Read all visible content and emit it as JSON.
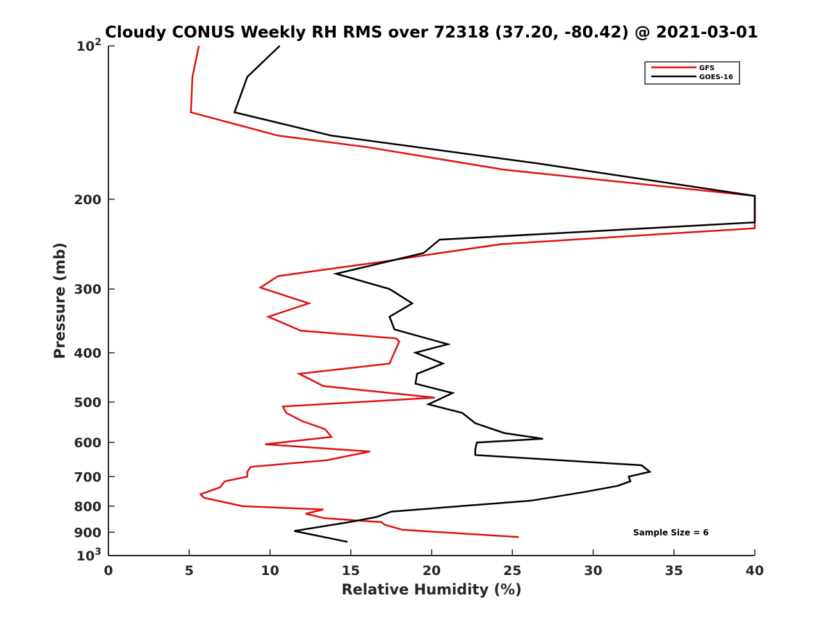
{
  "chart_data": {
    "type": "line",
    "title": "Cloudy CONUS Weekly RH RMS over 72318 (37.20, -80.42) @ 2021-03-01",
    "xlabel": "Relative Humidity (%)",
    "ylabel": "Pressure (mb)",
    "xlim": [
      0,
      40
    ],
    "ylim": [
      100,
      1000
    ],
    "yscale": "log",
    "y_reversed": true,
    "grid": false,
    "legend_position": "top-right",
    "x_ticks": [
      "0",
      "5",
      "10",
      "15",
      "20",
      "25",
      "30",
      "35",
      "40"
    ],
    "y_ticks": [
      {
        "value": 100,
        "base": "10",
        "exp": "2"
      },
      {
        "value": 200,
        "label": "200"
      },
      {
        "value": 300,
        "label": "300"
      },
      {
        "value": 400,
        "label": "400"
      },
      {
        "value": 500,
        "label": "500"
      },
      {
        "value": 600,
        "label": "600"
      },
      {
        "value": 700,
        "label": "700"
      },
      {
        "value": 800,
        "label": "800"
      },
      {
        "value": 900,
        "label": "900"
      },
      {
        "value": 1000,
        "base": "10",
        "exp": "3"
      }
    ],
    "annotation": "Sample Size = 6",
    "series": [
      {
        "name": "GFS",
        "color": "#e01010",
        "points": [
          {
            "rh": 5.6,
            "p": 100
          },
          {
            "rh": 5.2,
            "p": 115
          },
          {
            "rh": 5.1,
            "p": 135
          },
          {
            "rh": 10.5,
            "p": 150
          },
          {
            "rh": 16.0,
            "p": 158
          },
          {
            "rh": 24.5,
            "p": 175
          },
          {
            "rh": 40.0,
            "p": 197
          },
          {
            "rh": 40.0,
            "p": 228
          },
          {
            "rh": 24.3,
            "p": 245
          },
          {
            "rh": 20.5,
            "p": 255
          },
          {
            "rh": 17.0,
            "p": 265
          },
          {
            "rh": 10.5,
            "p": 283
          },
          {
            "rh": 9.4,
            "p": 298
          },
          {
            "rh": 12.4,
            "p": 320
          },
          {
            "rh": 9.9,
            "p": 340
          },
          {
            "rh": 11.9,
            "p": 362
          },
          {
            "rh": 17.8,
            "p": 375
          },
          {
            "rh": 18.0,
            "p": 380
          },
          {
            "rh": 17.4,
            "p": 420
          },
          {
            "rh": 11.8,
            "p": 440
          },
          {
            "rh": 13.3,
            "p": 465
          },
          {
            "rh": 20.2,
            "p": 490
          },
          {
            "rh": 10.8,
            "p": 510
          },
          {
            "rh": 11.0,
            "p": 525
          },
          {
            "rh": 12.0,
            "p": 545
          },
          {
            "rh": 13.4,
            "p": 565
          },
          {
            "rh": 13.8,
            "p": 585
          },
          {
            "rh": 9.7,
            "p": 605
          },
          {
            "rh": 16.2,
            "p": 625
          },
          {
            "rh": 13.5,
            "p": 650
          },
          {
            "rh": 8.8,
            "p": 670
          },
          {
            "rh": 8.6,
            "p": 685
          },
          {
            "rh": 8.6,
            "p": 700
          },
          {
            "rh": 7.2,
            "p": 715
          },
          {
            "rh": 6.9,
            "p": 735
          },
          {
            "rh": 5.7,
            "p": 758
          },
          {
            "rh": 5.9,
            "p": 770
          },
          {
            "rh": 8.3,
            "p": 800
          },
          {
            "rh": 13.3,
            "p": 812
          },
          {
            "rh": 12.2,
            "p": 828
          },
          {
            "rh": 13.4,
            "p": 845
          },
          {
            "rh": 16.9,
            "p": 860
          },
          {
            "rh": 17.1,
            "p": 870
          },
          {
            "rh": 18.2,
            "p": 890
          },
          {
            "rh": 25.4,
            "p": 920
          }
        ]
      },
      {
        "name": "GOES-16",
        "color": "#000000",
        "points": [
          {
            "rh": 10.6,
            "p": 100
          },
          {
            "rh": 8.6,
            "p": 115
          },
          {
            "rh": 7.8,
            "p": 135
          },
          {
            "rh": 13.8,
            "p": 150
          },
          {
            "rh": 26.5,
            "p": 170
          },
          {
            "rh": 40.0,
            "p": 197
          },
          {
            "rh": 40.0,
            "p": 222
          },
          {
            "rh": 20.5,
            "p": 240
          },
          {
            "rh": 19.5,
            "p": 255
          },
          {
            "rh": 14.1,
            "p": 280
          },
          {
            "rh": 17.4,
            "p": 300
          },
          {
            "rh": 18.8,
            "p": 320
          },
          {
            "rh": 17.4,
            "p": 340
          },
          {
            "rh": 17.7,
            "p": 360
          },
          {
            "rh": 21.0,
            "p": 385
          },
          {
            "rh": 19.0,
            "p": 400
          },
          {
            "rh": 20.7,
            "p": 420
          },
          {
            "rh": 19.1,
            "p": 440
          },
          {
            "rh": 19.0,
            "p": 460
          },
          {
            "rh": 21.3,
            "p": 480
          },
          {
            "rh": 19.8,
            "p": 505
          },
          {
            "rh": 21.9,
            "p": 525
          },
          {
            "rh": 22.7,
            "p": 550
          },
          {
            "rh": 24.5,
            "p": 575
          },
          {
            "rh": 26.9,
            "p": 590
          },
          {
            "rh": 22.8,
            "p": 600
          },
          {
            "rh": 22.7,
            "p": 620
          },
          {
            "rh": 22.7,
            "p": 635
          },
          {
            "rh": 33.0,
            "p": 665
          },
          {
            "rh": 33.5,
            "p": 685
          },
          {
            "rh": 32.2,
            "p": 700
          },
          {
            "rh": 32.3,
            "p": 715
          },
          {
            "rh": 31.5,
            "p": 730
          },
          {
            "rh": 29.5,
            "p": 750
          },
          {
            "rh": 26.2,
            "p": 780
          },
          {
            "rh": 17.5,
            "p": 820
          },
          {
            "rh": 16.6,
            "p": 840
          },
          {
            "rh": 14.9,
            "p": 860
          },
          {
            "rh": 11.5,
            "p": 895
          },
          {
            "rh": 14.8,
            "p": 940
          }
        ]
      }
    ]
  }
}
